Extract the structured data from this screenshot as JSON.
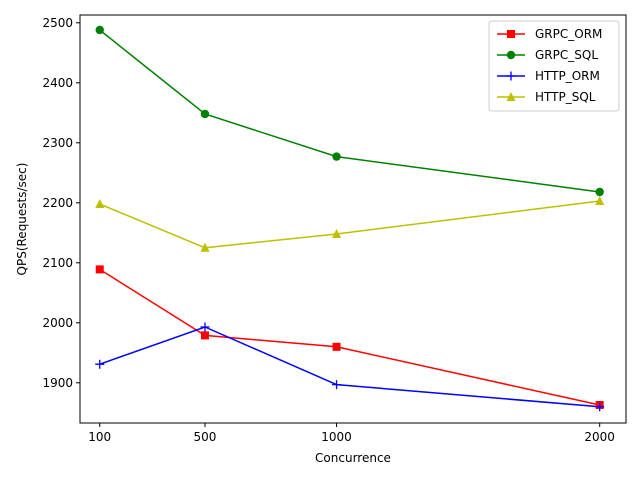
{
  "chart_data": {
    "type": "line",
    "title": "",
    "xlabel": "Concurrence",
    "ylabel": "QPS(Requests/sec)",
    "x": [
      100,
      500,
      1000,
      2000
    ],
    "xticks": [
      100,
      500,
      1000,
      2000
    ],
    "xticklabels": [
      "100",
      "500",
      "1000",
      "2000"
    ],
    "xlim": [
      25,
      2100
    ],
    "ylim": [
      1833,
      2513
    ],
    "yticks": [
      1900,
      2000,
      2100,
      2200,
      2300,
      2400,
      2500
    ],
    "yticklabels": [
      "1900",
      "2000",
      "2100",
      "2200",
      "2300",
      "2400",
      "2500"
    ],
    "grid": false,
    "legend_position": "top-right",
    "series": [
      {
        "name": "GRPC_ORM",
        "color": "#ff0000",
        "marker": "square",
        "values": [
          2089,
          1979,
          1960,
          1863
        ]
      },
      {
        "name": "GRPC_SQL",
        "color": "#008000",
        "marker": "circle",
        "values": [
          2488,
          2348,
          2277,
          2218
        ]
      },
      {
        "name": "HTTP_ORM",
        "color": "#0000ff",
        "marker": "plus",
        "values": [
          1931,
          1993,
          1897,
          1860
        ]
      },
      {
        "name": "HTTP_SQL",
        "color": "#bfbf00",
        "marker": "triangle",
        "values": [
          2198,
          2125,
          2148,
          2203
        ]
      }
    ]
  }
}
